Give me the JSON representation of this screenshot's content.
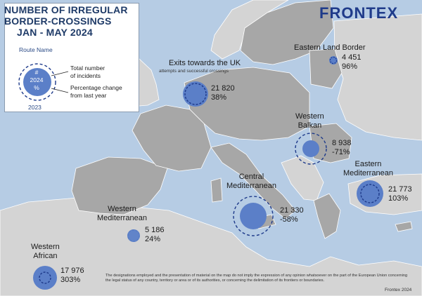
{
  "title": [
    "NUMBER OF IRREGULAR",
    "BORDER-CROSSINGS",
    "JAN - MAY 2024"
  ],
  "logo": "FRONTEX",
  "legend": {
    "route_name_label": "Route Name",
    "inner_hash": "#",
    "inner_year": "2024",
    "inner_pct": "%",
    "outer_year": "2023",
    "total_line1": "Total number",
    "total_line2": "of incidents",
    "pct_line1": "Percentage change",
    "pct_line2": "from last year"
  },
  "routes": [
    {
      "id": "western-african",
      "name": [
        "Western",
        "African"
      ],
      "value": "17 976",
      "change": "303%"
    },
    {
      "id": "western-mediterranean",
      "name": [
        "Western",
        "Mediterranean"
      ],
      "value": "5 186",
      "change": "24%"
    },
    {
      "id": "central-mediterranean",
      "name": [
        "Central",
        "Mediterranean"
      ],
      "value": "21 330",
      "change": "-58%"
    },
    {
      "id": "western-balkan",
      "name": [
        "Western",
        "Balkan"
      ],
      "value": "8 938",
      "change": "-71%"
    },
    {
      "id": "eastern-mediterranean",
      "name": [
        "Eastern",
        "Mediterranean"
      ],
      "value": "21 773",
      "change": "103%"
    },
    {
      "id": "eastern-land-border",
      "name": [
        "Eastern Land Border"
      ],
      "value": "4 451",
      "change": "96%"
    },
    {
      "id": "exits-uk",
      "name": [
        "Exits towards the UK"
      ],
      "subtitle": "attempts and successful crossings",
      "value": "21 820",
      "change": "38%"
    }
  ],
  "disclaimer": "The designations employed and the presentation of material on the map do not imply the expression of any opinion whatsoever on the part of the European Union concerning the legal status of any country, territory or area or of its authorities, or concerning the delimitation of its frontiers or boundaries.",
  "credit": "Frontex 2024",
  "colors": {
    "sea": "#b6cce4",
    "eu_land": "#a7a7a7",
    "non_eu_land": "#d4d4d4",
    "bubble": "#5b7fc8",
    "ring": "#1e3a8a"
  }
}
